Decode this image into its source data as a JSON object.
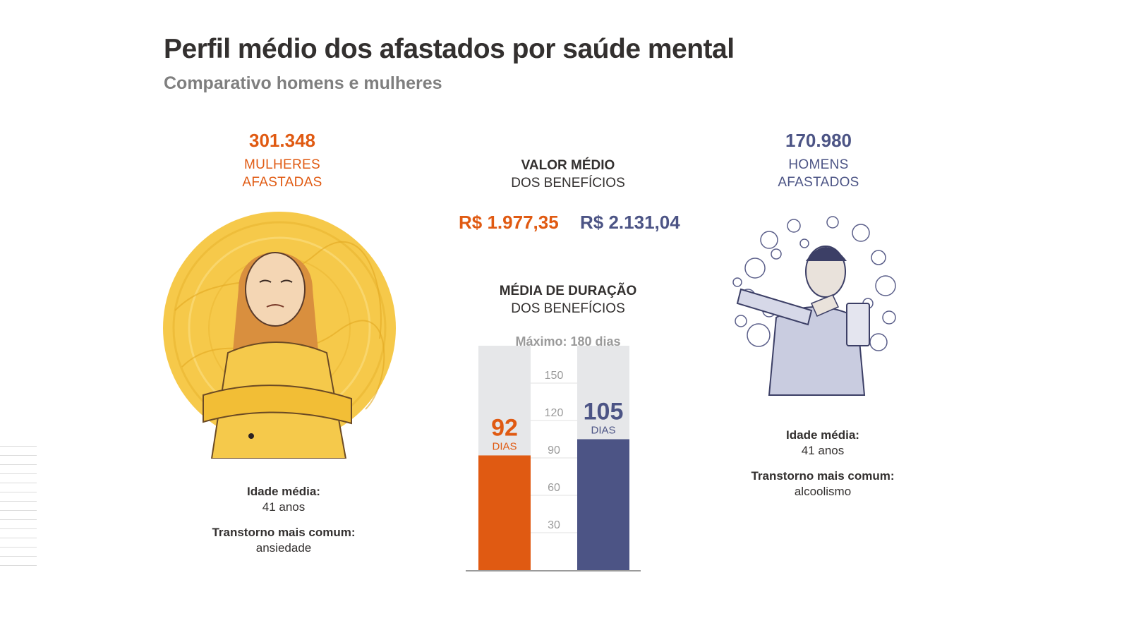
{
  "title": "Perfil médio dos afastados por saúde mental",
  "subtitle": "Comparativo homens e mulheres",
  "women": {
    "count": "301.348",
    "label_line1": "MULHERES",
    "label_line2": "AFASTADAS",
    "age_label": "Idade média:",
    "age_value": "41 anos",
    "disorder_label": "Transtorno mais comum:",
    "disorder_value": "ansiedade",
    "benefit_value": "R$ 1.977,35",
    "color": "#e05a12"
  },
  "men": {
    "count": "170.980",
    "label_line1": "HOMENS",
    "label_line2": "AFASTADOS",
    "age_label": "Idade média:",
    "age_value": "41 anos",
    "disorder_label": "Transtorno mais comum:",
    "disorder_value": "alcoolismo",
    "benefit_value": "R$ 2.131,04",
    "color": "#4c5485"
  },
  "benefit_heading": {
    "line1": "VALOR MÉDIO",
    "line2": "DOS BENEFÍCIOS"
  },
  "duration_heading": {
    "line1": "MÉDIA DE DURAÇÃO",
    "line2": "DOS BENEFÍCIOS"
  },
  "max_label": "Máximo: 180 dias",
  "illustrations": {
    "woman": "woman-arms-crossed-illustration",
    "man": "man-pouring-drink-illustration"
  },
  "chart_data": {
    "type": "bar",
    "categories": [
      "Mulheres",
      "Homens"
    ],
    "values": [
      92,
      105
    ],
    "colors": [
      "#e05a12",
      "#4c5485"
    ],
    "value_labels": [
      "92",
      "105"
    ],
    "unit_label": "DIAS",
    "ylim": [
      0,
      180
    ],
    "yticks": [
      30,
      60,
      90,
      120,
      150
    ],
    "background_bar_color": "#e6e7e9",
    "grid": true
  }
}
